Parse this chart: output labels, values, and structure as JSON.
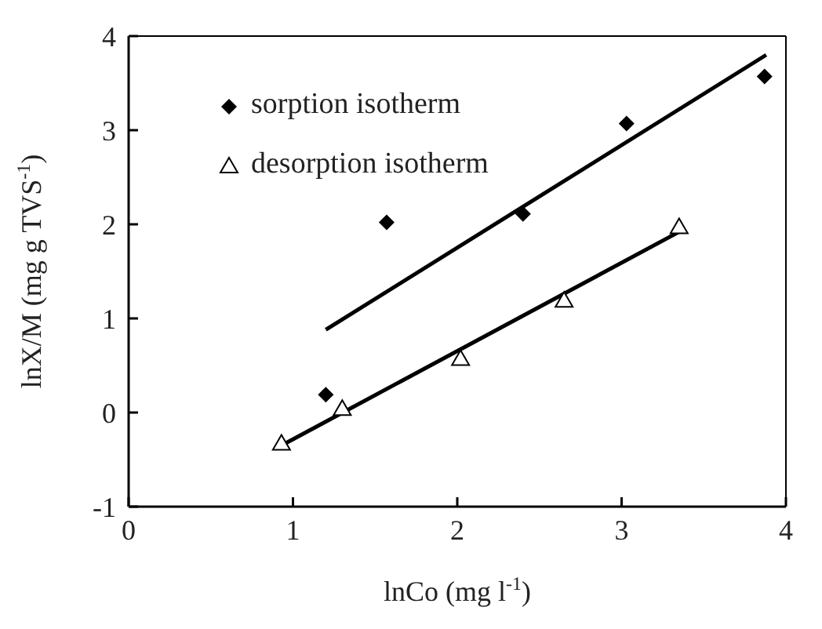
{
  "chart_data": {
    "type": "scatter",
    "xlabel": "lnCo (mg l$^{-1}$)",
    "ylabel": "lnX/M (mg g TVS$^{-1}$)",
    "xlim": [
      0,
      4
    ],
    "xticks": [
      0,
      1,
      2,
      3,
      4
    ],
    "ylim": [
      -1,
      4
    ],
    "yticks": [
      -1,
      0,
      1,
      2,
      3,
      4
    ],
    "legend": "top left",
    "series": [
      {
        "name": "sorption isotherm",
        "marker": "diamond",
        "color": "#000000",
        "x": [
          1.2,
          1.57,
          2.4,
          3.03,
          3.87
        ],
        "values": [
          0.19,
          2.02,
          2.11,
          3.07,
          3.57
        ]
      },
      {
        "name": "desorption isotherm",
        "marker": "triangle",
        "color": "#000000",
        "x": [
          0.93,
          1.3,
          2.02,
          2.65,
          3.35
        ],
        "values": [
          -0.33,
          0.04,
          0.57,
          1.19,
          1.97
        ]
      },
      {
        "type": "line",
        "marker": "none",
        "color": "#000000",
        "x": [
          1.2,
          3.88
        ],
        "values": [
          0.88,
          3.8
        ]
      },
      {
        "type": "line",
        "marker": "none",
        "color": "#000000",
        "x": [
          0.93,
          3.35
        ],
        "values": [
          -0.35,
          1.92
        ]
      }
    ]
  }
}
